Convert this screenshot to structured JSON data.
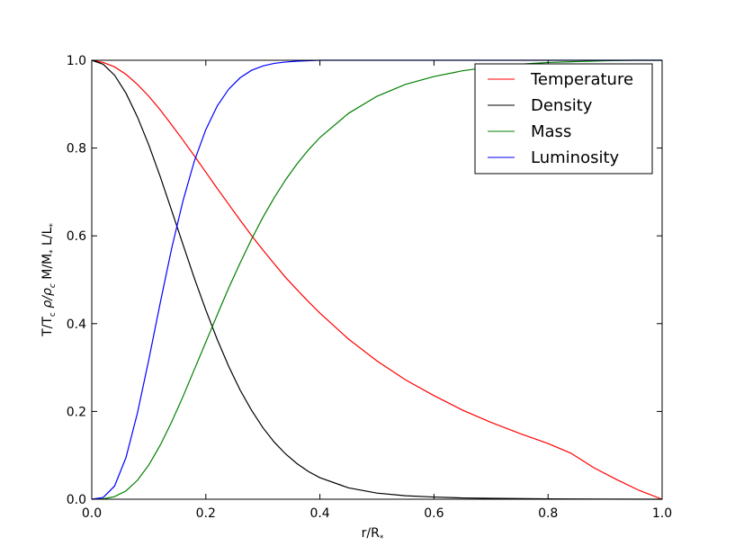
{
  "chart_data": {
    "type": "line",
    "xlabel": "r/R",
    "xlabel_sub": "*",
    "ylabel_parts": {
      "t1": "T/T",
      "t1_sub": "c",
      "rho": "ρ/ρ",
      "rho_sub": "c",
      "mass": "M/M",
      "mass_sub": "*",
      "lum": "L/L",
      "lum_sub": "*"
    },
    "xlim": [
      0.0,
      1.0
    ],
    "ylim": [
      0.0,
      1.0
    ],
    "xticks": [
      0.0,
      0.2,
      0.4,
      0.6,
      0.8,
      1.0
    ],
    "xtick_labels": [
      "0.0",
      "0.2",
      "0.4",
      "0.6",
      "0.8",
      "1.0"
    ],
    "yticks": [
      0.0,
      0.2,
      0.4,
      0.6,
      0.8,
      1.0
    ],
    "ytick_labels": [
      "0.0",
      "0.2",
      "0.4",
      "0.6",
      "0.8",
      "1.0"
    ],
    "grid": false,
    "legend_position": "top-right",
    "series": [
      {
        "name": "Temperature",
        "color": "#ff0000",
        "x": [
          0.0,
          0.02,
          0.04,
          0.06,
          0.08,
          0.1,
          0.12,
          0.14,
          0.16,
          0.18,
          0.2,
          0.22,
          0.24,
          0.26,
          0.28,
          0.3,
          0.32,
          0.34,
          0.36,
          0.38,
          0.4,
          0.45,
          0.5,
          0.55,
          0.6,
          0.65,
          0.7,
          0.75,
          0.8,
          0.84,
          0.88,
          0.92,
          0.96,
          1.0
        ],
        "y": [
          1.0,
          0.995,
          0.985,
          0.968,
          0.945,
          0.918,
          0.887,
          0.853,
          0.818,
          0.782,
          0.745,
          0.708,
          0.672,
          0.636,
          0.601,
          0.568,
          0.536,
          0.505,
          0.477,
          0.45,
          0.424,
          0.365,
          0.315,
          0.272,
          0.236,
          0.203,
          0.175,
          0.15,
          0.127,
          0.105,
          0.072,
          0.045,
          0.02,
          0.0
        ]
      },
      {
        "name": "Density",
        "color": "#000000",
        "x": [
          0.0,
          0.02,
          0.04,
          0.06,
          0.08,
          0.1,
          0.12,
          0.14,
          0.16,
          0.18,
          0.2,
          0.22,
          0.24,
          0.26,
          0.28,
          0.3,
          0.32,
          0.34,
          0.36,
          0.38,
          0.4,
          0.45,
          0.5,
          0.55,
          0.6,
          0.65,
          0.7,
          0.8,
          0.9,
          1.0
        ],
        "y": [
          1.0,
          0.991,
          0.966,
          0.925,
          0.871,
          0.807,
          0.735,
          0.658,
          0.58,
          0.503,
          0.431,
          0.364,
          0.303,
          0.249,
          0.203,
          0.163,
          0.13,
          0.103,
          0.081,
          0.063,
          0.049,
          0.026,
          0.014,
          0.008,
          0.005,
          0.003,
          0.002,
          0.0008,
          0.0002,
          0.0
        ]
      },
      {
        "name": "Mass",
        "color": "#008000",
        "x": [
          0.0,
          0.02,
          0.04,
          0.06,
          0.08,
          0.1,
          0.12,
          0.14,
          0.16,
          0.18,
          0.2,
          0.22,
          0.24,
          0.26,
          0.28,
          0.3,
          0.32,
          0.34,
          0.36,
          0.38,
          0.4,
          0.45,
          0.5,
          0.55,
          0.6,
          0.65,
          0.7,
          0.75,
          0.8,
          0.85,
          0.9,
          0.95,
          1.0
        ],
        "y": [
          0.0,
          0.0008,
          0.006,
          0.019,
          0.043,
          0.078,
          0.123,
          0.176,
          0.234,
          0.296,
          0.358,
          0.42,
          0.481,
          0.538,
          0.592,
          0.642,
          0.687,
          0.728,
          0.764,
          0.796,
          0.824,
          0.879,
          0.918,
          0.945,
          0.963,
          0.976,
          0.985,
          0.991,
          0.995,
          0.997,
          0.999,
          1.0,
          1.0
        ]
      },
      {
        "name": "Luminosity",
        "color": "#0000ff",
        "x": [
          0.0,
          0.02,
          0.04,
          0.06,
          0.08,
          0.1,
          0.12,
          0.14,
          0.16,
          0.18,
          0.2,
          0.22,
          0.24,
          0.26,
          0.28,
          0.3,
          0.32,
          0.34,
          0.36,
          0.38,
          0.4,
          0.45,
          0.5,
          0.6,
          0.8,
          1.0
        ],
        "y": [
          0.0,
          0.004,
          0.03,
          0.095,
          0.196,
          0.318,
          0.447,
          0.571,
          0.68,
          0.771,
          0.842,
          0.896,
          0.934,
          0.96,
          0.977,
          0.987,
          0.993,
          0.996,
          0.998,
          0.999,
          1.0,
          1.0,
          1.0,
          1.0,
          1.0,
          1.0
        ]
      }
    ]
  }
}
